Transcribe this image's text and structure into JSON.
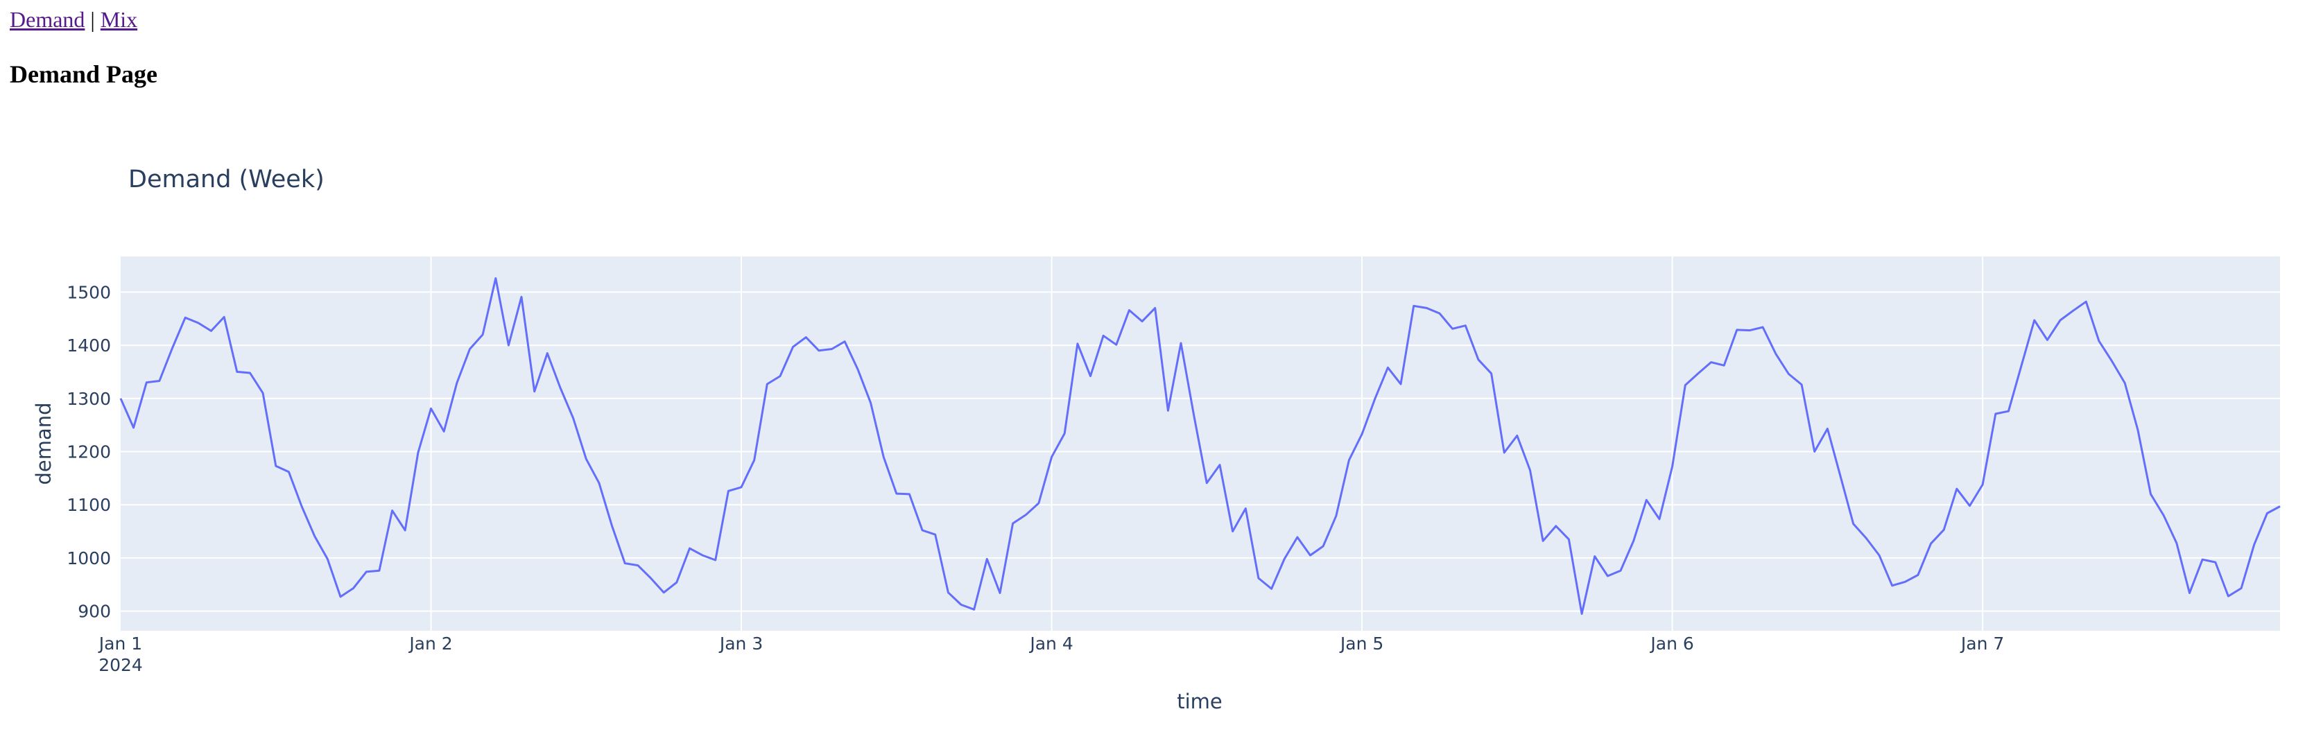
{
  "nav": {
    "links": [
      "Demand",
      "Mix"
    ],
    "separator": "|"
  },
  "page": {
    "title": "Demand Page"
  },
  "colors": {
    "plot_bg": "#E5ECF6",
    "grid": "#ffffff",
    "line": "#636EFA",
    "text": "#2a3f5f"
  },
  "chart_data": {
    "type": "line",
    "title": "Demand (Week)",
    "xlabel": "time",
    "ylabel": "demand",
    "x_start": "2024-01-01 00:00",
    "x_end": "2024-01-07 23:00",
    "x_step_hours": 1,
    "x_ticks": [
      {
        "label": "Jan 1",
        "sub": "2024",
        "hour": 0
      },
      {
        "label": "Jan 2",
        "hour": 24
      },
      {
        "label": "Jan 3",
        "hour": 48
      },
      {
        "label": "Jan 4",
        "hour": 72
      },
      {
        "label": "Jan 5",
        "hour": 96
      },
      {
        "label": "Jan 6",
        "hour": 120
      },
      {
        "label": "Jan 7",
        "hour": 144
      }
    ],
    "y_ticks": [
      900,
      1000,
      1100,
      1200,
      1300,
      1400,
      1500
    ],
    "ylim": [
      863,
      1567
    ],
    "grid": true,
    "series": [
      {
        "values": [
          1300,
          1245,
          1330,
          1333,
          1395,
          1452,
          1442,
          1427,
          1453,
          1350,
          1348,
          1310,
          1173,
          1162,
          1097,
          1041,
          998,
          927,
          943,
          974,
          976,
          1089,
          1052,
          1198,
          1281,
          1238,
          1329,
          1393,
          1420,
          1526,
          1400,
          1491,
          1313,
          1385,
          1320,
          1263,
          1186,
          1141,
          1060,
          990,
          986,
          962,
          935,
          954,
          1018,
          1005,
          996,
          1126,
          1133,
          1184,
          1327,
          1342,
          1397,
          1415,
          1390,
          1393,
          1407,
          1355,
          1292,
          1190,
          1121,
          1120,
          1052,
          1044,
          935,
          912,
          903,
          998,
          934,
          1065,
          1081,
          1103,
          1190,
          1234,
          1403,
          1342,
          1418,
          1401,
          1466,
          1445,
          1470,
          1277,
          1404,
          1268,
          1141,
          1175,
          1050,
          1093,
          962,
          942,
          998,
          1039,
          1005,
          1022,
          1079,
          1184,
          1233,
          1299,
          1358,
          1327,
          1474,
          1470,
          1460,
          1431,
          1437,
          1373,
          1347,
          1198,
          1230,
          1165,
          1032,
          1060,
          1035,
          895,
          1003,
          966,
          976,
          1032,
          1109,
          1073,
          1172,
          1325,
          1347,
          1368,
          1362,
          1429,
          1428,
          1434,
          1384,
          1346,
          1326,
          1200,
          1243,
          1154,
          1064,
          1037,
          1005,
          948,
          955,
          968,
          1027,
          1053,
          1130,
          1098,
          1138,
          1271,
          1276,
          1362,
          1447,
          1410,
          1447,
          1465,
          1482,
          1408,
          1370,
          1329,
          1241,
          1120,
          1080,
          1028,
          934,
          997,
          992,
          928,
          943,
          1025,
          1084,
          1097
        ]
      }
    ]
  }
}
